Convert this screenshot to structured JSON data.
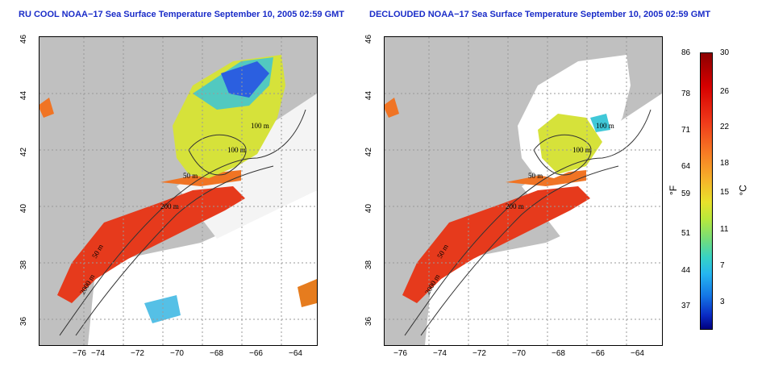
{
  "titles": {
    "left": "RU COOL NOAA−17 Sea Surface Temperature September 10, 2005 02:59 GMT",
    "right": "DECLOUDED NOAA−17 Sea Surface Temperature September 10, 2005 02:59 GMT"
  },
  "axes": {
    "x_ticks": [
      "−76",
      "−74",
      "−72",
      "−70",
      "−68",
      "−66",
      "−64"
    ],
    "y_ticks": [
      "46",
      "44",
      "42",
      "40",
      "38",
      "36"
    ]
  },
  "contour_labels": [
    "100 m",
    "100 m",
    "50 m",
    "200 m",
    "50 m",
    "2000 m"
  ],
  "colorbar": {
    "fahrenheit_ticks": [
      "86",
      "78",
      "71",
      "64",
      "59",
      "51",
      "44",
      "37"
    ],
    "celsius_ticks": [
      "30",
      "26",
      "22",
      "18",
      "15",
      "11",
      "7",
      "3"
    ],
    "fahrenheit_unit": "°F",
    "celsius_unit": "°C"
  },
  "colors": {
    "land": "#c0c0c0",
    "cloud": "#ffffff",
    "warm": "#e63a1c",
    "cool": "#e6e22b",
    "cold": "#2b7fe6",
    "title": "#1a2cc8"
  }
}
